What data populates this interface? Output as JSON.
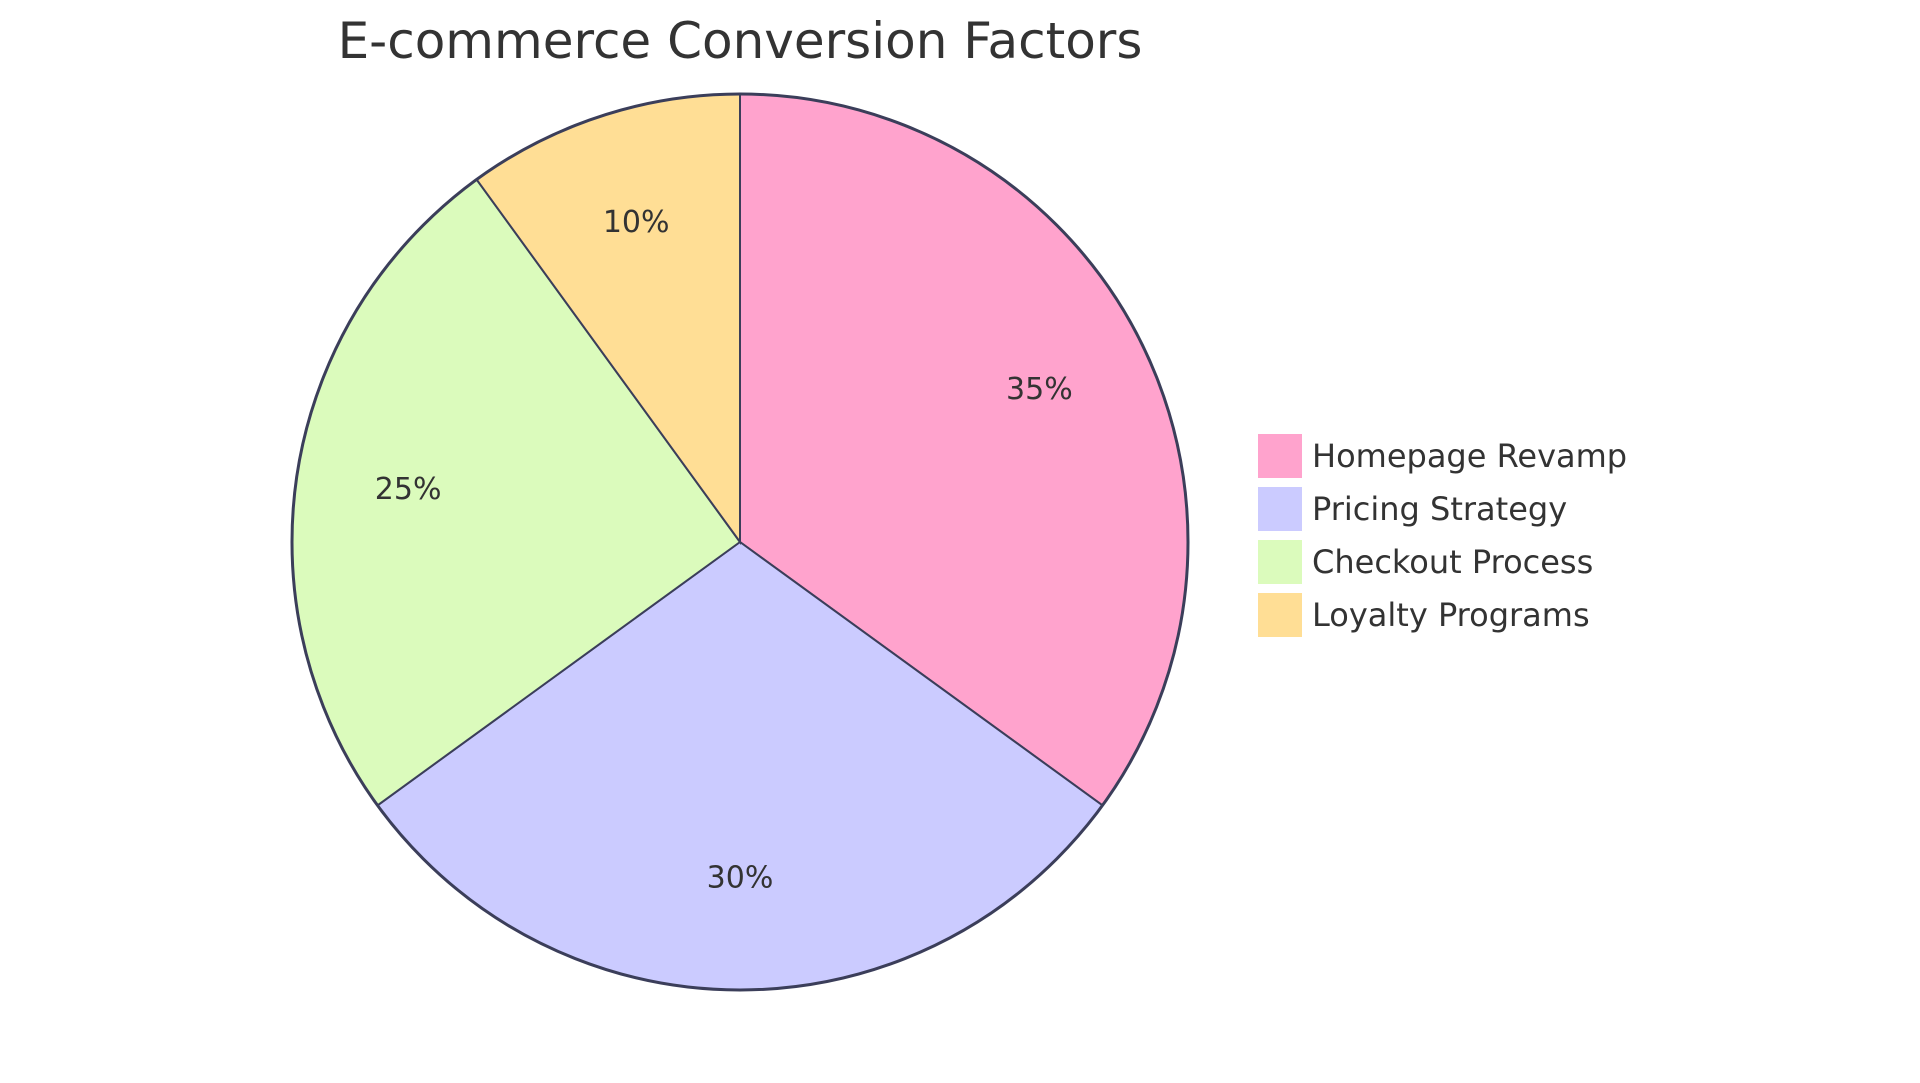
{
  "chart_data": {
    "type": "pie",
    "title": "E-commerce Conversion Factors",
    "slices": [
      {
        "name": "Homepage Revamp",
        "value": 35,
        "label": "35%",
        "color": "#ffa3cd"
      },
      {
        "name": "Pricing Strategy",
        "value": 30,
        "label": "30%",
        "color": "#cbcbff"
      },
      {
        "name": "Checkout Process",
        "value": 25,
        "label": "25%",
        "color": "#dbfbbc"
      },
      {
        "name": "Loyalty Programs",
        "value": 10,
        "label": "10%",
        "color": "#ffde95"
      }
    ],
    "legend": "right",
    "stroke_color": "#3b3e5a"
  }
}
